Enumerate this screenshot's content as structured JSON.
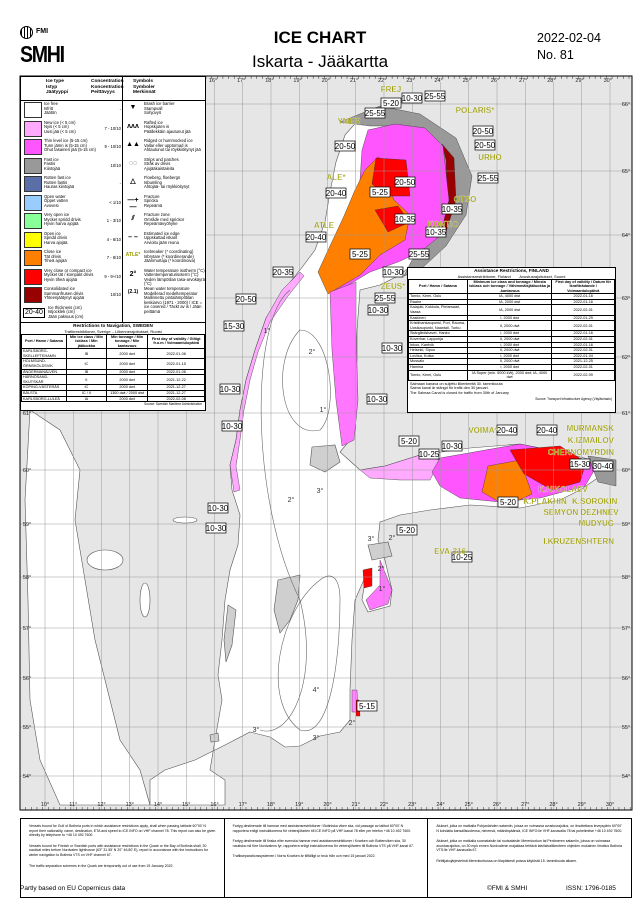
{
  "header": {
    "logo_fmi": "FMI",
    "logo_smhi": "SMHI",
    "title": "ICE CHART",
    "subtitle": "Iskarta - Jääkartta",
    "date": "2022-02-04",
    "number": "No. 81"
  },
  "legend": {
    "col_ice_type": [
      "Ice type",
      "Istyp",
      "Jäätyyppi"
    ],
    "col_concentration": [
      "Concentration",
      "Koncentration",
      "Peittävyys"
    ],
    "col_symbols": [
      "Symbols",
      "Symboler",
      "Merkinnät"
    ],
    "ice_types": [
      {
        "en": "Ice free",
        "sv": "Isfritt",
        "fi": "Jäätön",
        "conc": "-",
        "color": "#ffffff"
      },
      {
        "en": "New ice (< 5 cm)",
        "sv": "Nyis (< 5 cm)",
        "fi": "Uusi jää (< 5 cm)",
        "conc": "7 - 10/10",
        "color": "#ffaaff"
      },
      {
        "en": "Thin level ice (5-15 cm)",
        "sv": "Tunn jämn is (5-15 cm)",
        "fi": "Ohut tasainen jää (5-15 cm)",
        "conc": "9 - 10/10",
        "color": "#ff55ff"
      },
      {
        "en": "Fast ice",
        "sv": "Fastis",
        "fi": "Kiintojää",
        "conc": "10/10",
        "color": "#999999"
      },
      {
        "en": "Rotten fast ice",
        "sv": "Rutten fastis",
        "fi": "Hauras kiintojää",
        "conc": "-",
        "color": "#5a6fa8"
      },
      {
        "en": "Open water",
        "sv": "Öppet vatten",
        "fi": "Avovesi",
        "conc": "< 1/10",
        "color": "#99ccff"
      },
      {
        "en": "Very open ice",
        "sv": "Mycket spridd drivis",
        "fi": "Hyvin harva ajojää",
        "conc": "1 - 3/10",
        "color": "#88ff99"
      },
      {
        "en": "Open ice",
        "sv": "Spridd drivis",
        "fi": "Harva ajojää",
        "conc": "4 - 6/10",
        "color": "#ffff00"
      },
      {
        "en": "Close ice",
        "sv": "Tät drivis",
        "fi": "Tiheä ajojää",
        "conc": "7 - 8/10",
        "color": "#ff8000"
      },
      {
        "en": "Very close or compact ice",
        "sv": "Mycket tät / kompakt drivis",
        "fi": "Hyvin tiheä ajojää",
        "conc": "9 - 9+/10",
        "color": "#ff0000"
      },
      {
        "en": "Consolidated ice",
        "sv": "Sammanfrusen drivis",
        "fi": "Yhteenjäätynyt ajojää",
        "conc": "10/10",
        "color": "#990000"
      }
    ],
    "thickness": {
      "sample": "20-40",
      "en": "Ice thickness (cm)",
      "sv": "Istjocklek (cm)",
      "fi": "Jään paksuus (cm)"
    },
    "symbols": [
      {
        "glyph": "▼",
        "icon": "brash-barrier-icon",
        "en": "Brash ice barrier",
        "sv": "Stampvall",
        "fi": "Sohjovyö"
      },
      {
        "glyph": "ʌʌʌ",
        "icon": "rafted-ice-icon",
        "en": "Rafted ice",
        "sv": "Hopskjuten is",
        "fi": "Päällekkäin ajautunut jää"
      },
      {
        "glyph": "▲▲",
        "icon": "ridged-ice-icon",
        "en": "Ridged or hummocked ice",
        "sv": "Vallar eller upptornad is",
        "fi": "Ahtautunut tai röykkiöitynyt jää"
      },
      {
        "glyph": "◌◌",
        "icon": "strips-patches-icon",
        "en": "Strips and patches",
        "sv": "Stråk av drivis",
        "fi": "Ajojääkaistaleita"
      },
      {
        "glyph": "△",
        "icon": "floeberg-icon",
        "en": "Floeberg, floebergs",
        "sv": "Isbumling",
        "fi": "Ahtojää- tai röykkiöitynyt"
      },
      {
        "glyph": "—+—",
        "icon": "fracture-icon",
        "en": "Fracture",
        "sv": "Spricka",
        "fi": "Repeämä"
      },
      {
        "glyph": "⫽",
        "icon": "fracture-zone-icon",
        "en": "Fracture zone",
        "sv": "Område med sprickor",
        "fi": "Repeämävyöhyke"
      },
      {
        "glyph": "– –",
        "icon": "ice-edge-icon",
        "en": "Estimated ice edge",
        "sv": "Uppskattad iskant",
        "fi": "Arvioitu jään reuna"
      },
      {
        "glyph": "ATLE*",
        "icon": "icebreaker-icon",
        "en": "Icebreaker (* coordinating)",
        "sv": "Isbrytare (* koordinerande)",
        "fi": "Jäänmurtaja (* koordinoiva)"
      },
      {
        "glyph": "2°",
        "icon": "isotherm-icon",
        "en": "Water temperature isotherm (°C)",
        "sv": "Vattentemperaturisoterm (°C)",
        "fi": "Veden lämpötilan tasa-arvokäyrä (°C)"
      },
      {
        "glyph": "(2.1)",
        "icon": "mean-temperature-icon",
        "en": "Mean water temperature",
        "sv": "Modellerad medeltemperatur",
        "fi": "Mallinnettu pintalämpötilan keskiarvo (1971 - 2000) / ICE = ice covered / Täckt av is / Jään peittämä"
      }
    ]
  },
  "sweden_table": {
    "title": "Restrictions to Navigation, SWEDEN",
    "subtitle": "Trafikrestriktioner, Sverige – Liikennerajoitukset, Ruotsi",
    "headers": [
      "Port / Hamn / Satama",
      "Min ice class / Min isklass / Min jääluokka",
      "Min tonnage / Min tonnage / Min kantavuus",
      "First day of validity / Giltigt fr.o.m / Voimaantulopäivä"
    ],
    "rows": [
      [
        "KARLSBORG-SKELLEFTEHAMN",
        "IB",
        "2000 dwt",
        "2022-01-06"
      ],
      [
        "HOLMSUND-ÖRNSKÖLDSVIK",
        "IC",
        "2000 dwt",
        "2022-01-15"
      ],
      [
        "ÅNGERMANÄLVEN",
        "IB",
        "2000 dwt",
        "2022-01-06"
      ],
      [
        "HÄRNÖSAND-SKUTSKÄR",
        "II",
        "2000 dwt",
        "2021-12-22"
      ],
      [
        "KÖPING-VÄSTERÅS",
        "IC",
        "2000 dwt",
        "2021-12-27"
      ],
      [
        "BÅLSTA",
        "IC / II",
        "1300 dwt / 2000 dwt",
        "2021-12-27"
      ],
      [
        "KARLSBORG-LULEÅ",
        "IA",
        "2000 dwt",
        "2022-02-08"
      ]
    ],
    "source": "Source: Swedish Maritime Administration"
  },
  "finland_table": {
    "title": "Assistance Restrictions, FINLAND",
    "subtitle": "Assistansrestriktioner, Finland        Avustusrajoitukset, Suomi",
    "headers": [
      "Port / Hamn / Satama",
      "Minimum ice class and tonnage / Minsta isklass och tonnage / Vähimmäisjääluokka ja -kantavuus",
      "First day of validity / Datum för ikraftträdande / Voimaantulopäivä"
    ],
    "rows": [
      [
        "Tornio, Kemi, Oulu",
        "IA, 4000 dwt",
        "2022-01-16"
      ],
      [
        "Raahe",
        "IA, 2000 dwt",
        "2022-01-16"
      ],
      [
        "Kalajoki, Kokkola, Pietarsaari, Vaasa",
        "IA, 2000 dwt",
        "2022-02-01"
      ],
      [
        "Kaskinen",
        "I, 2000 dwt",
        "2022-01-29"
      ],
      [
        "Kristiinankaupunki, Pori, Rauma, Uusikaupunki, Naantali, Turku",
        "II, 2000 dwt",
        "2022-02-01"
      ],
      [
        "Skärgårdshavet, Hanko",
        "I, 2000 dwt",
        "2022-01-16"
      ],
      [
        "Koverhar, Lappohja",
        "II, 2000 dwt",
        "2022-02-01"
      ],
      [
        "Inkoo, Kantvik",
        "I, 2000 dwt",
        "2022-01-16"
      ],
      [
        "Helsinki, Sipoo",
        "II, 2000 dwt",
        "2022-02-01"
      ],
      [
        "Loviisa, Kotka",
        "I, 2000 dwt",
        "2022-01-04"
      ],
      [
        "Mussalo",
        "II, 2000 dwt",
        "2021-12-25"
      ],
      [
        "Hamina",
        "I, 2000 dwt",
        "2022-02-01"
      ],
      [
        "Tornio, Kemi, Oulu",
        "IA Super (min. 5000 kW), 2000 dwt; IA, 4000 dwt",
        "2022-02-09"
      ]
    ],
    "notes": [
      "Saimaan kanava on suljettu liikenteeltä 30. tammikuuta",
      "Saima kanal är stängd för trafik den 30 januari.",
      "The Saimaa Canal is closed for traffic from 30th of January"
    ],
    "source": "Source: Transport Infrastructure Agency (Väylävirasto)"
  },
  "map": {
    "top_longitudes": [
      "16°",
      "17°",
      "18°",
      "19°",
      "20°",
      "21°",
      "22°",
      "23°",
      "24°",
      "25°",
      "26°",
      "27°",
      "28°",
      "29°",
      "30°"
    ],
    "bottom_longitudes": [
      "10°",
      "11°",
      "12°",
      "13°",
      "14°",
      "15°",
      "16°",
      "17°",
      "18°",
      "19°",
      "20°",
      "21°",
      "22°",
      "23°",
      "24°",
      "25°",
      "26°",
      "27°",
      "28°",
      "29°",
      "30°"
    ],
    "latitudes": [
      "66°",
      "65°",
      "64°",
      "63°",
      "62°",
      "61°",
      "60°",
      "59°",
      "58°",
      "57°",
      "56°",
      "55°",
      "54°"
    ],
    "colors": {
      "land": "#e6e6e6",
      "sea": "#ffffff",
      "grid": "#9a9a9a",
      "icebreaker_text": "#9a9a00"
    },
    "ice_thickness_labels": [
      "5-20",
      "10-30",
      "25-55",
      "25-55",
      "20-50",
      "20-50",
      "20-50",
      "25-55",
      "5-25",
      "20-50",
      "20-40",
      "10-35",
      "10-35",
      "10-35",
      "20-40",
      "25-55",
      "5-25",
      "10-30",
      "25-55",
      "10-30",
      "20-35",
      "20-50",
      "15-30",
      "10-30",
      "10-30",
      "10-30",
      "10-30",
      "10-30",
      "20-40",
      "20-40",
      "5-20",
      "10-30",
      "10-25",
      "15-30",
      "30-40",
      "5-20",
      "5-20",
      "10-25",
      "5-15",
      "10-30"
    ],
    "icebreakers": [
      "FREJ",
      "POLARIS*",
      "YMER",
      "URHO",
      "ALE*",
      "OTSO",
      "KONTIO",
      "ATLE",
      "ZEUS*",
      "VOIMA*",
      "MURMANSK",
      "K.IZMAILOV",
      "CHERNOMYRDIN",
      "K.NIKOLAEV",
      "K.PLAKHIN",
      "K.SOROKIN",
      "SEMYON DEZHNEV",
      "MUDYUG",
      "I.KRUZENSHTERN",
      "EVA-316"
    ],
    "isotherms": [
      "1°",
      "2°",
      "1°",
      "2°",
      "3°",
      "2°",
      "1°",
      "3°",
      "2°",
      "4°",
      "3°",
      "3°",
      "2°"
    ]
  },
  "notes": {
    "col1": [
      "Vessels bound for Gulf of Bothnia ports in which assistance restrictions apply, shall when passing latitude 60°00' N report their nationality, name, destination, ETA and speed to ICE INFO on VHF channel 78. This report can also be given directly by telephone to +46 10 492 7600.",
      "Vessels bound for Finnish or Swedish ports with assistance restrictions in the Quark or the Bay of Bothnia shall, 30 nautical miles before Nordvalen lighthouse (63° 31.55' N 20° 46.80' E), report in accordance with the instructions for winter navigation to Bothnia VTS on VHF channel 67.",
      "The traffic separation schemes in the Quark are temporarily out of use from 15 January 2022."
    ],
    "col2": [
      "Fartyg destinerade till hamnar med assistansrestriktioner i Bottniska viken ska, vid passage av latitud 60°00' N rapportera enligt instruktionerna för vintersjöfarten till ICE INFO på VHF-kanal 78 eller per telefon +46 10 492 7600.",
      "Fartyg destinerade till finska eller svenska hamnar med assistansrestriktioner i Kvarken och Bottenviken ska, 30 nautiska mil före Nordvalens fyr, rapportera enligt instruktionerna för vintersjöfarten till Bothnia VTS på VHF-kanal 67.",
      "Trafikseparationssystemen i Norra Kvarken är tillfälligt ur bruk från och med 15 januari 2022."
    ],
    "col3": [
      "Alukset, jotka on matkalla Pohjanlahden satamiin, joissa on voimassa avustusrajoitus, on ilmoitettava leveyspiirin 60°00' N kohdalla kansallisuutensa, nimensä, määränpäänsä, ICE INFO:lle VHF-kanavalla 78 tai puhelimitse +46 10 492 7600.",
      "Alukset, jotka on matkalla suomalaisiin tai ruotsalaisiin Merenkurkun tai Perämeren satamiin, joissa on voimassa avustusrajoitus, on 30 mpk ennen Nordvalenin majakkaa tehtävä talvilaivaliikenteen ohjeiden mukainen ilmoitus Bothnia VTS:lle VHF-kanavalla 67.",
      "Reittijakojärjestelmä Merenkurkussa on tilapäisesti poissa käytöstä 15. tammikuuta alkaen."
    ]
  },
  "footer": {
    "left": "Partly based on EU Copernicus data",
    "copyright": "©FMI & SMHI",
    "issn": "ISSN: 1796-0185"
  }
}
